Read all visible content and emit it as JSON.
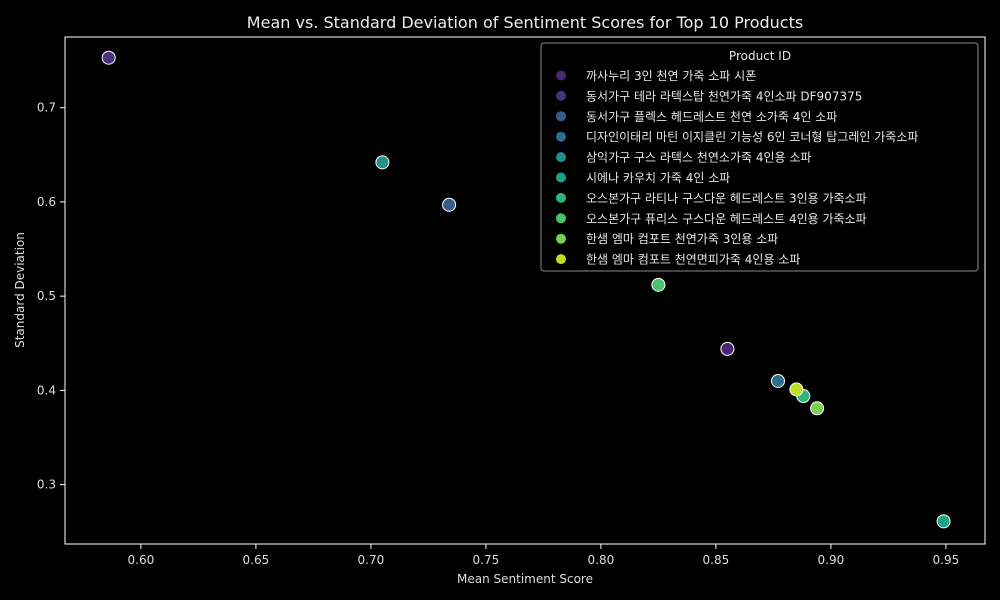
{
  "chart_data": {
    "type": "scatter",
    "title": "Mean vs. Standard Deviation of Sentiment Scores for Top 10 Products",
    "xlabel": "Mean Sentiment Score",
    "ylabel": "Standard Deviation",
    "xlim": [
      0.567,
      0.967
    ],
    "ylim": [
      0.237,
      0.775
    ],
    "xticks": [
      0.6,
      0.65,
      0.7,
      0.75,
      0.8,
      0.85,
      0.9,
      0.95
    ],
    "xtick_labels": [
      "0.60",
      "0.65",
      "0.70",
      "0.75",
      "0.80",
      "0.85",
      "0.90",
      "0.95"
    ],
    "yticks": [
      0.3,
      0.4,
      0.5,
      0.6,
      0.7
    ],
    "ytick_labels": [
      "0.3",
      "0.4",
      "0.5",
      "0.6",
      "0.7"
    ],
    "grid": false,
    "legend": {
      "title": "Product ID",
      "placement": "top-right"
    },
    "series": [
      {
        "name": "까사누리 3인 천연 가죽 소파 시폰",
        "color": "#482575",
        "points": [
          {
            "x": 0.855,
            "y": 0.444
          }
        ]
      },
      {
        "name": "동서가구 테라 라텍스탑 천연가죽 4인소파 DF907375",
        "color": "#46337e",
        "points": [
          {
            "x": 0.586,
            "y": 0.753
          }
        ]
      },
      {
        "name": "동서가구 플렉스 헤드레스트 천연 소가죽 4인 소파",
        "color": "#365c8d",
        "points": [
          {
            "x": 0.734,
            "y": 0.597
          }
        ]
      },
      {
        "name": "디자인이태리 마틴 이지클린 기능성 6인 코너형 탑그레인 가죽소파",
        "color": "#2e6e8e",
        "points": [
          {
            "x": 0.877,
            "y": 0.41
          }
        ]
      },
      {
        "name": "삼익가구 구스 라텍스 천연소가죽 4인용 소파",
        "color": "#21918c",
        "points": [
          {
            "x": 0.705,
            "y": 0.642
          }
        ]
      },
      {
        "name": "시에나 카우치 가죽 4인 소파",
        "color": "#1fa187",
        "points": [
          {
            "x": 0.949,
            "y": 0.261
          }
        ]
      },
      {
        "name": "오스본가구 라티나 구스다운 헤드레스트 3인용 가죽소파",
        "color": "#2fb47c",
        "points": [
          {
            "x": 0.888,
            "y": 0.394
          }
        ]
      },
      {
        "name": "오스본가구 퓨리스 구스다운 헤드레스트 4인용 가죽소파",
        "color": "#4ac16d",
        "points": [
          {
            "x": 0.825,
            "y": 0.512
          }
        ]
      },
      {
        "name": "한샘 엠마 컴포트 천연가죽 3인용 소파",
        "color": "#7ad151",
        "points": [
          {
            "x": 0.894,
            "y": 0.381
          }
        ]
      },
      {
        "name": "한샘 엠마 컴포트 천연면피가죽 4인용 소파",
        "color": "#bddf26",
        "points": [
          {
            "x": 0.885,
            "y": 0.401
          }
        ]
      }
    ]
  }
}
